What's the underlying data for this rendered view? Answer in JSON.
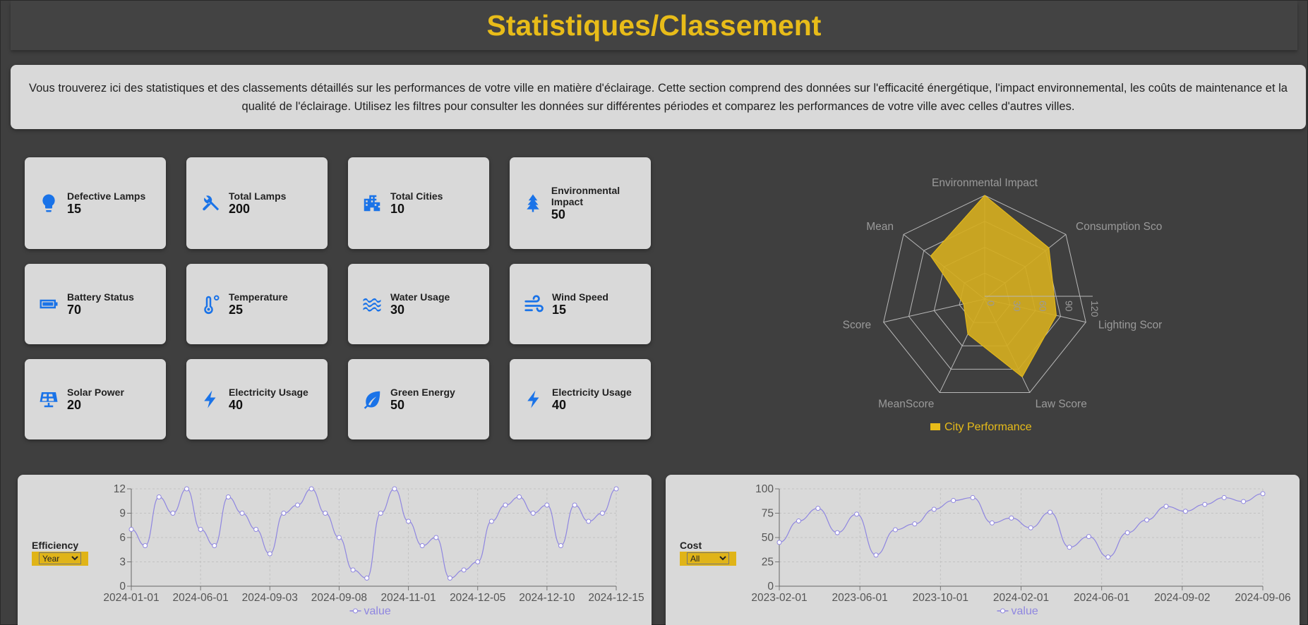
{
  "page": {
    "title": "Statistiques/Classement",
    "intro": "Vous trouverez ici des statistiques et des classements détaillés sur les performances de votre ville en matière d'éclairage. Cette section comprend des données sur l'efficacité énergétique, l'impact environnemental, les coûts de maintenance et la qualité de l'éclairage. Utilisez les filtres pour consulter les données sur différentes périodes et comparez les performances de votre ville avec celles d'autres villes."
  },
  "cards": [
    {
      "label": "Defective Lamps",
      "value": "15",
      "icon": "lightbulb-icon"
    },
    {
      "label": "Total Lamps",
      "value": "200",
      "icon": "tools-icon"
    },
    {
      "label": "Total Cities",
      "value": "10",
      "icon": "city-icon"
    },
    {
      "label": "Environmental Impact",
      "value": "50",
      "icon": "tree-icon"
    },
    {
      "label": "Battery Status",
      "value": "70",
      "icon": "battery-icon"
    },
    {
      "label": "Temperature",
      "value": "25",
      "icon": "thermometer-icon"
    },
    {
      "label": "Water Usage",
      "value": "30",
      "icon": "water-icon"
    },
    {
      "label": "Wind Speed",
      "value": "15",
      "icon": "wind-icon"
    },
    {
      "label": "Solar Power",
      "value": "20",
      "icon": "solar-panel-icon"
    },
    {
      "label": "Electricity Usage",
      "value": "40",
      "icon": "bolt-icon"
    },
    {
      "label": "Green Energy",
      "value": "50",
      "icon": "leaf-icon"
    },
    {
      "label": "Electricity Usage",
      "value": "40",
      "icon": "bolt-icon"
    }
  ],
  "colors": {
    "accent": "#e8bc19",
    "icon": "#1a73e8",
    "radar_fill": "#d4ad1f",
    "line": "#8f86e0"
  },
  "chart_data": [
    {
      "type": "radar",
      "categories": [
        "Environmental Impact",
        "Consumption Score",
        "Lighting Score",
        "Law Score",
        "MeanScore",
        "Score",
        "Mean"
      ],
      "series": [
        {
          "name": "City Performance",
          "values": [
            120,
            95,
            85,
            100,
            45,
            25,
            80
          ]
        }
      ],
      "ticks": [
        "0",
        "30",
        "60",
        "90",
        "120"
      ],
      "rmax": 120,
      "legend": "bottom"
    },
    {
      "type": "line",
      "ylabel_control": "Efficiency",
      "filter": "Year",
      "filter_options": [
        "Year"
      ],
      "legend": "value",
      "yticks": [
        0,
        3,
        6,
        9,
        12
      ],
      "ylim": [
        0,
        12
      ],
      "xticks": [
        "2024-01-01",
        "2024-06-01",
        "2024-09-03",
        "2024-09-08",
        "2024-11-01",
        "2024-12-05",
        "2024-12-10",
        "2024-12-15"
      ],
      "values": [
        7,
        5,
        11,
        9,
        12,
        7,
        5,
        11,
        9,
        7,
        4,
        9,
        10,
        12,
        9,
        6,
        2,
        1,
        9,
        12,
        8,
        5,
        6,
        1,
        2,
        3,
        8,
        10,
        11,
        9,
        10,
        5,
        10,
        8,
        9,
        12
      ]
    },
    {
      "type": "line",
      "ylabel_control": "Cost",
      "filter": "All",
      "filter_options": [
        "All"
      ],
      "legend": "value",
      "yticks": [
        0,
        25,
        50,
        75,
        100
      ],
      "ylim": [
        0,
        100
      ],
      "xticks": [
        "2023-02-01",
        "2023-06-01",
        "2023-10-01",
        "2024-02-01",
        "2024-06-01",
        "2024-09-02",
        "2024-09-06"
      ],
      "values": [
        45,
        67,
        80,
        55,
        74,
        32,
        58,
        64,
        79,
        88,
        91,
        65,
        70,
        60,
        76,
        40,
        51,
        30,
        55,
        68,
        82,
        77,
        84,
        91,
        87,
        95
      ]
    }
  ]
}
